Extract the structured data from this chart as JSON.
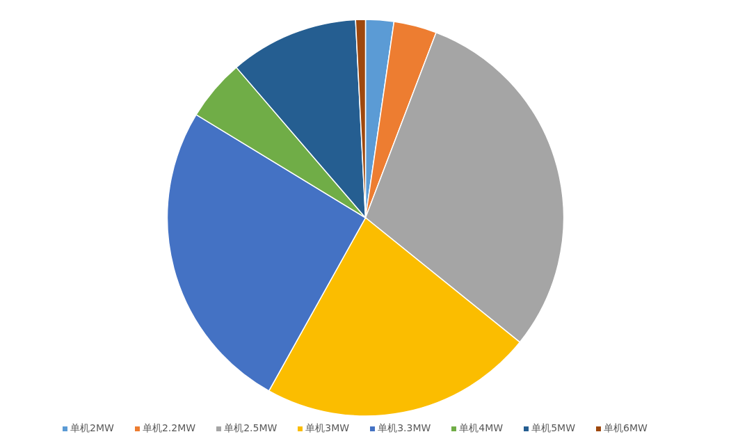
{
  "chart_data": {
    "type": "pie",
    "categories": [
      "单机2MW",
      "单机2.2MW",
      "单机2.5MW",
      "单机3MW",
      "单机3.3MW",
      "单机4MW",
      "单机5MW",
      "单机6MW"
    ],
    "values": [
      2.3,
      3.5,
      30.0,
      22.3,
      25.6,
      5.0,
      10.5,
      0.8
    ],
    "colors": [
      "#5b9bd5",
      "#ed7d31",
      "#a5a5a5",
      "#fbbd00",
      "#4472c4",
      "#70ad47",
      "#255e91",
      "#9e480e"
    ],
    "legend": "bottom"
  }
}
